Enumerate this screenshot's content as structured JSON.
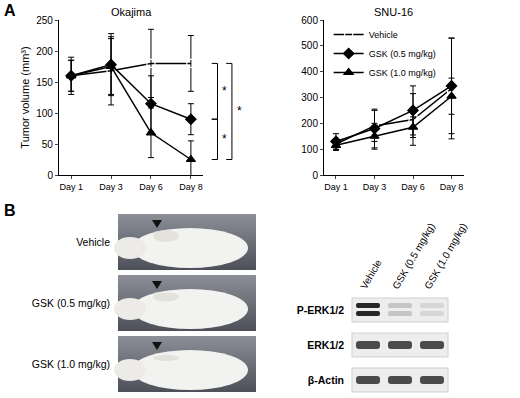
{
  "panel_labels": [
    "A",
    "B"
  ],
  "chart_data": [
    {
      "type": "line",
      "title": "Okajima",
      "y_label": "Tumor volume (mm³)",
      "categories": [
        "Day 1",
        "Day 3",
        "Day 6",
        "Day 8"
      ],
      "ylim": [
        0,
        250
      ],
      "yticks": [
        0,
        50,
        100,
        150,
        200,
        250
      ],
      "series": [
        {
          "name": "Vehicle",
          "color": "#000000",
          "marker": "square-open",
          "values": [
            160,
            168,
            180,
            180
          ],
          "errors": [
            30,
            55,
            55,
            45
          ]
        },
        {
          "name": "GSK (0.5 mg/kg)",
          "color": "#000000",
          "marker": "diamond",
          "values": [
            160,
            178,
            115,
            90
          ],
          "errors": [
            25,
            50,
            45,
            25
          ]
        },
        {
          "name": "GSK (1.0 mg/kg)",
          "color": "#000000",
          "marker": "triangle-up",
          "values": [
            160,
            175,
            68,
            25
          ],
          "errors": [
            25,
            45,
            40,
            30
          ]
        }
      ],
      "annotations": [
        {
          "text": "*",
          "from": "Vehicle",
          "to": "GSK (0.5 mg/kg)"
        },
        {
          "text": "*",
          "from": "GSK (0.5 mg/kg)",
          "to": "GSK (1.0 mg/kg)"
        },
        {
          "text": "*",
          "from": "Vehicle",
          "to": "GSK (1.0 mg/kg)"
        }
      ]
    },
    {
      "type": "line",
      "title": "SNU-16",
      "categories": [
        "Day 1",
        "Day 3",
        "Day 6",
        "Day 8"
      ],
      "ylim": [
        0,
        600
      ],
      "yticks": [
        0,
        100,
        200,
        300,
        400,
        500,
        600
      ],
      "legend": "upper left",
      "series": [
        {
          "name": "Vehicle",
          "color": "#000000",
          "marker": "square-open",
          "values": [
            120,
            190,
            215,
            335
          ],
          "errors": [
            20,
            60,
            100,
            195
          ]
        },
        {
          "name": "GSK (0.5 mg/kg)",
          "color": "#000000",
          "marker": "diamond",
          "values": [
            130,
            180,
            250,
            345
          ],
          "errors": [
            30,
            75,
            95,
            185
          ]
        },
        {
          "name": "GSK (1.0 mg/kg)",
          "color": "#000000",
          "marker": "triangle-up",
          "values": [
            115,
            150,
            185,
            305
          ],
          "errors": [
            20,
            50,
            40,
            70
          ]
        }
      ]
    }
  ],
  "panel_b": {
    "photos": [
      {
        "label": "Vehicle"
      },
      {
        "label": "GSK (0.5 mg/kg)"
      },
      {
        "label": "GSK (1.0 mg/kg)"
      }
    ],
    "blot": {
      "lanes": [
        "Vehicle",
        "GSK (0.5 mg/kg)",
        "GSK (1.0 mg/kg)"
      ],
      "rows": [
        "P-ERK1/2",
        "ERK1/2",
        "β-Actin"
      ]
    }
  }
}
